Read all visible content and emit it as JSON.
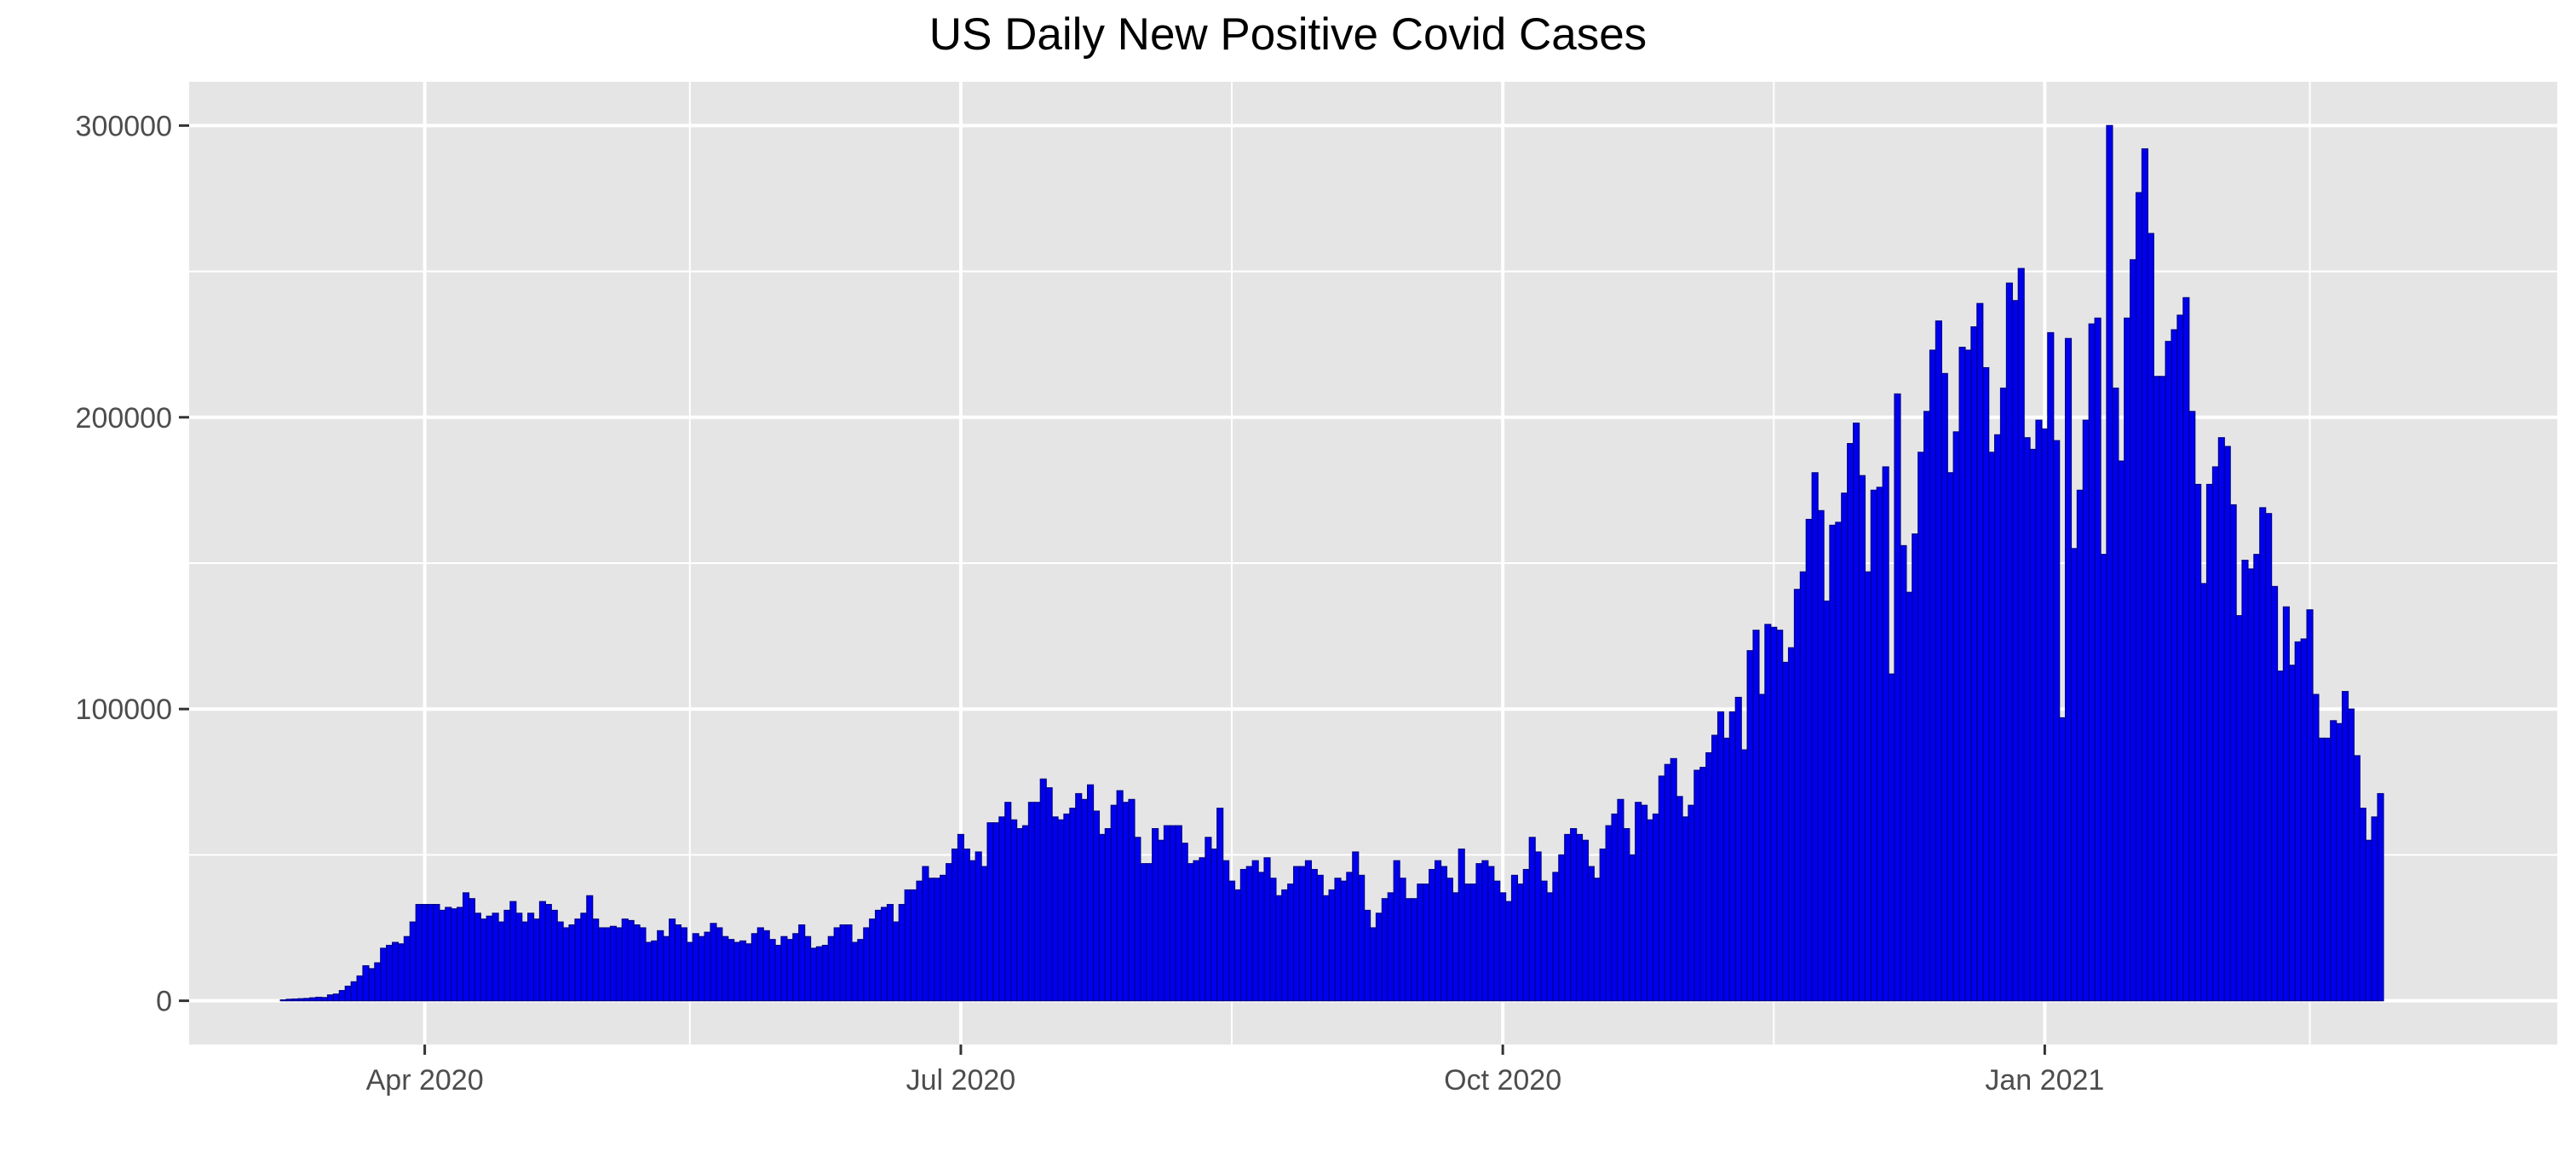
{
  "chart_data": {
    "type": "bar",
    "title": "US Daily New Positive Covid Cases",
    "xlabel": "",
    "ylabel": "",
    "x_start_date": "2020-03-08",
    "x_range": [
      "2020-02-21",
      "2021-03-29"
    ],
    "ylim": [
      -15000,
      315000
    ],
    "y_ticks": [
      0,
      100000,
      200000,
      300000
    ],
    "y_tick_labels": [
      "0",
      "100000",
      "200000",
      "300000"
    ],
    "x_ticks": [
      "2020-04-01",
      "2020-07-01",
      "2020-10-01",
      "2021-01-01"
    ],
    "x_tick_labels": [
      "Apr 2020",
      "Jul 2020",
      "Oct 2020",
      "Jan 2021"
    ],
    "x_minor_ticks": [
      "2020-05-16",
      "2020-08-16",
      "2020-11-16",
      "2021-02-15"
    ],
    "grid": true,
    "legend": "none",
    "colors": {
      "bar_fill": "#0000ee",
      "bar_outline": "#00008b",
      "panel": "#e5e5e5",
      "grid": "#ffffff"
    },
    "values": [
      300,
      500,
      600,
      700,
      800,
      1000,
      1200,
      1100,
      2000,
      2300,
      3500,
      5000,
      6500,
      8500,
      12000,
      11000,
      13000,
      18000,
      19000,
      20000,
      19500,
      22000,
      27000,
      33000,
      33000,
      33000,
      33000,
      31000,
      32000,
      31500,
      32000,
      37000,
      35000,
      30000,
      28000,
      29000,
      30000,
      27000,
      31000,
      34000,
      30000,
      27000,
      30000,
      28000,
      34000,
      33000,
      31000,
      27000,
      25000,
      26000,
      28000,
      30000,
      36000,
      28000,
      25000,
      25000,
      25500,
      25000,
      28000,
      27500,
      26000,
      25000,
      20000,
      20500,
      24000,
      22000,
      28000,
      26000,
      25000,
      20000,
      23000,
      22000,
      23500,
      26500,
      25000,
      22000,
      21000,
      20000,
      20500,
      19500,
      23000,
      25000,
      24000,
      21000,
      19000,
      22000,
      21000,
      23000,
      26000,
      22000,
      18000,
      18500,
      19000,
      22000,
      25000,
      26000,
      26000,
      20000,
      21000,
      25000,
      28000,
      31000,
      32000,
      33000,
      27000,
      33000,
      38000,
      38000,
      41000,
      46000,
      42000,
      42000,
      43000,
      47000,
      52000,
      57000,
      52000,
      48000,
      51000,
      46000,
      61000,
      61000,
      63000,
      68000,
      62000,
      59000,
      60000,
      68000,
      68000,
      76000,
      73000,
      63000,
      62000,
      64000,
      66000,
      71000,
      69000,
      74000,
      65000,
      57000,
      59000,
      67000,
      72000,
      68000,
      69000,
      56000,
      47000,
      47000,
      59000,
      55000,
      60000,
      60000,
      60000,
      54000,
      47000,
      48000,
      49000,
      56000,
      52000,
      66000,
      48000,
      41000,
      38000,
      45000,
      46000,
      48000,
      44000,
      49000,
      42000,
      36000,
      38000,
      40000,
      46000,
      46000,
      48000,
      45000,
      43000,
      36000,
      38000,
      42000,
      41000,
      44000,
      51000,
      43000,
      31000,
      25000,
      30000,
      35000,
      37000,
      48000,
      42000,
      35000,
      35000,
      40000,
      40000,
      45000,
      48000,
      46000,
      42000,
      37000,
      52000,
      40000,
      40000,
      47000,
      48000,
      46000,
      41000,
      37000,
      34000,
      43000,
      40000,
      45000,
      56000,
      51000,
      41000,
      37000,
      44000,
      50000,
      57000,
      59000,
      57000,
      55000,
      46000,
      42000,
      52000,
      60000,
      64000,
      69000,
      59000,
      50000,
      68000,
      67000,
      62000,
      64000,
      77000,
      81000,
      83000,
      70000,
      63000,
      67000,
      79000,
      80000,
      85000,
      91000,
      99000,
      90000,
      99000,
      104000,
      86000,
      120000,
      127000,
      105000,
      129000,
      128000,
      127000,
      116000,
      121000,
      141000,
      147000,
      165000,
      181000,
      168000,
      137000,
      163000,
      164000,
      174000,
      191000,
      198000,
      180000,
      147000,
      175000,
      176000,
      183000,
      112000,
      208000,
      156000,
      140000,
      160000,
      188000,
      202000,
      223000,
      233000,
      215000,
      181000,
      195000,
      224000,
      223000,
      231000,
      239000,
      217000,
      188000,
      194000,
      210000,
      246000,
      240000,
      251000,
      193000,
      189000,
      199000,
      196000,
      229000,
      192000,
      97000,
      227000,
      155000,
      175000,
      199000,
      232000,
      234000,
      153000,
      300000,
      210000,
      185000,
      234000,
      254000,
      277000,
      292000,
      263000,
      214000,
      214000,
      226000,
      230000,
      235000,
      241000,
      202000,
      177000,
      143000,
      177000,
      183000,
      193000,
      190000,
      170000,
      132000,
      151000,
      148000,
      153000,
      169000,
      167000,
      142000,
      113000,
      135000,
      115000,
      123000,
      124000,
      134000,
      105000,
      90000,
      90000,
      96000,
      95000,
      106000,
      100000,
      84000,
      66000,
      55000,
      63000,
      71000
    ]
  }
}
